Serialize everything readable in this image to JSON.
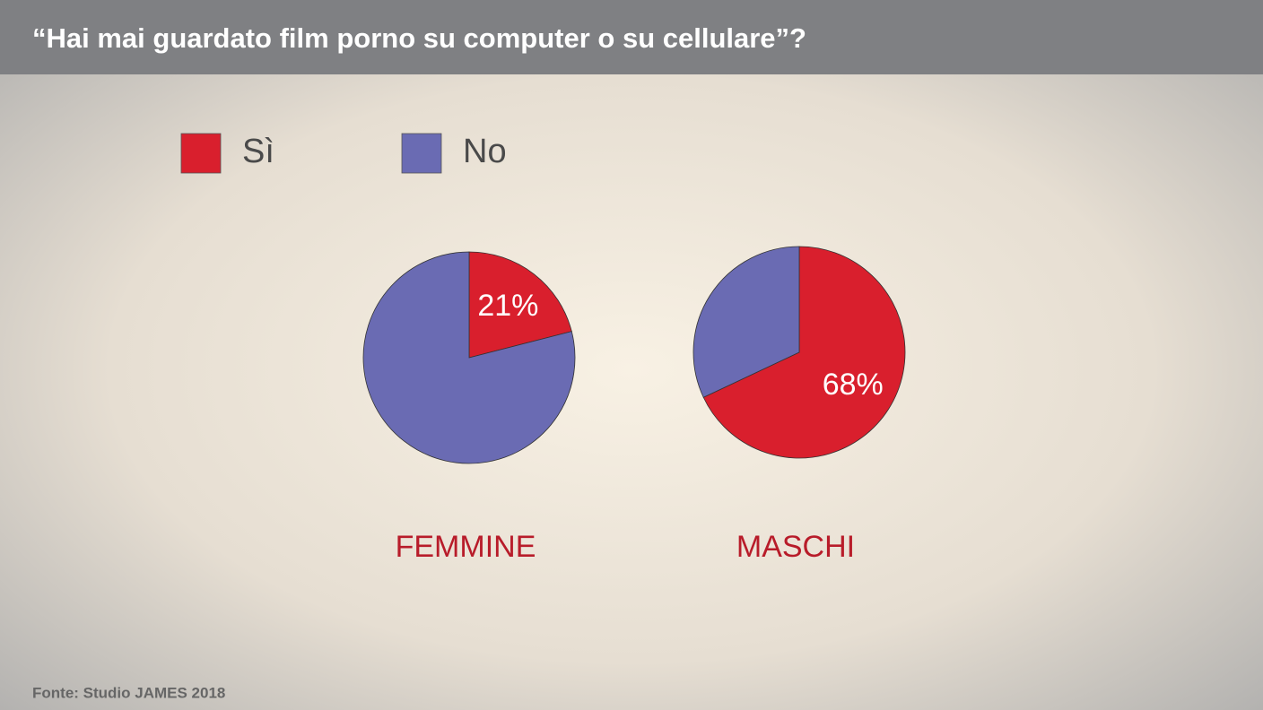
{
  "title": "“Hai mai guardato film porno su computer o su cellulare”?",
  "source": "Fonte: Studio JAMES 2018",
  "chart_data": [
    {
      "type": "pie",
      "title": "FEMMINE",
      "categories": [
        "Sì",
        "No"
      ],
      "values": [
        21,
        79
      ],
      "value_labels": [
        "21%",
        null
      ],
      "colors": [
        "#d91f2d",
        "#6a6bb3"
      ]
    },
    {
      "type": "pie",
      "title": "MASCHI",
      "categories": [
        "Sì",
        "No"
      ],
      "values": [
        68,
        32
      ],
      "value_labels": [
        "68%",
        null
      ],
      "colors": [
        "#d91f2d",
        "#6a6bb3"
      ]
    }
  ]
}
